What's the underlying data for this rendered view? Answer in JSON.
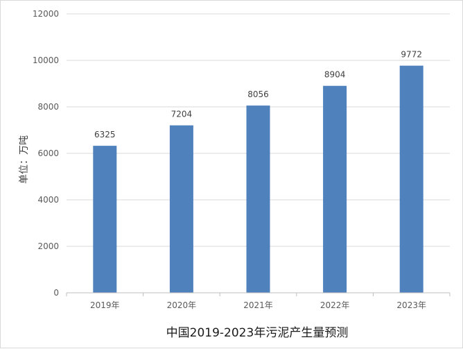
{
  "chart_data": {
    "type": "bar",
    "categories": [
      "2019年",
      "2020年",
      "2021年",
      "2022年",
      "2023年"
    ],
    "values": [
      6325,
      7204,
      8056,
      8904,
      9772
    ],
    "title": "",
    "xlabel": "中国2019-2023年污泥产生量预测",
    "ylabel": "单位：万吨",
    "ylim": [
      0,
      12000
    ],
    "yticks": [
      0,
      2000,
      4000,
      6000,
      8000,
      10000,
      12000
    ],
    "grid": true,
    "bar_color": "#4f81bd"
  }
}
